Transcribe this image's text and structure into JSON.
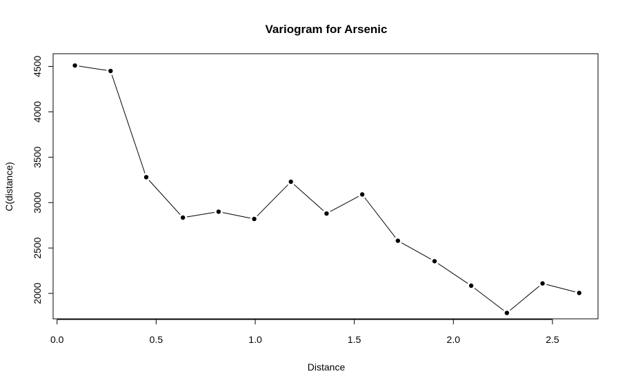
{
  "chart_data": {
    "type": "line",
    "title": "Variogram for Arsenic",
    "xlabel": "Distance",
    "ylabel": "C(distance)",
    "xlim": [
      -0.02,
      2.73
    ],
    "ylim": [
      1720,
      4640
    ],
    "x_ticks": [
      0.0,
      0.5,
      1.0,
      1.5,
      2.0,
      2.5
    ],
    "x_tick_labels": [
      "0.0",
      "0.5",
      "1.0",
      "1.5",
      "2.0",
      "2.5"
    ],
    "y_ticks": [
      2000,
      2500,
      3000,
      3500,
      4000,
      4500
    ],
    "y_tick_labels": [
      "2000",
      "2500",
      "3000",
      "3500",
      "4000",
      "4500"
    ],
    "grid": false,
    "series": [
      {
        "x": [
          0.09,
          0.27,
          0.45,
          0.635,
          0.815,
          0.995,
          1.18,
          1.36,
          1.54,
          1.72,
          1.905,
          2.09,
          2.27,
          2.45,
          2.635
        ],
        "y": [
          4510,
          4450,
          3280,
          2835,
          2900,
          2820,
          3230,
          2880,
          3090,
          2580,
          2355,
          2085,
          1785,
          2110,
          2005
        ]
      }
    ]
  }
}
